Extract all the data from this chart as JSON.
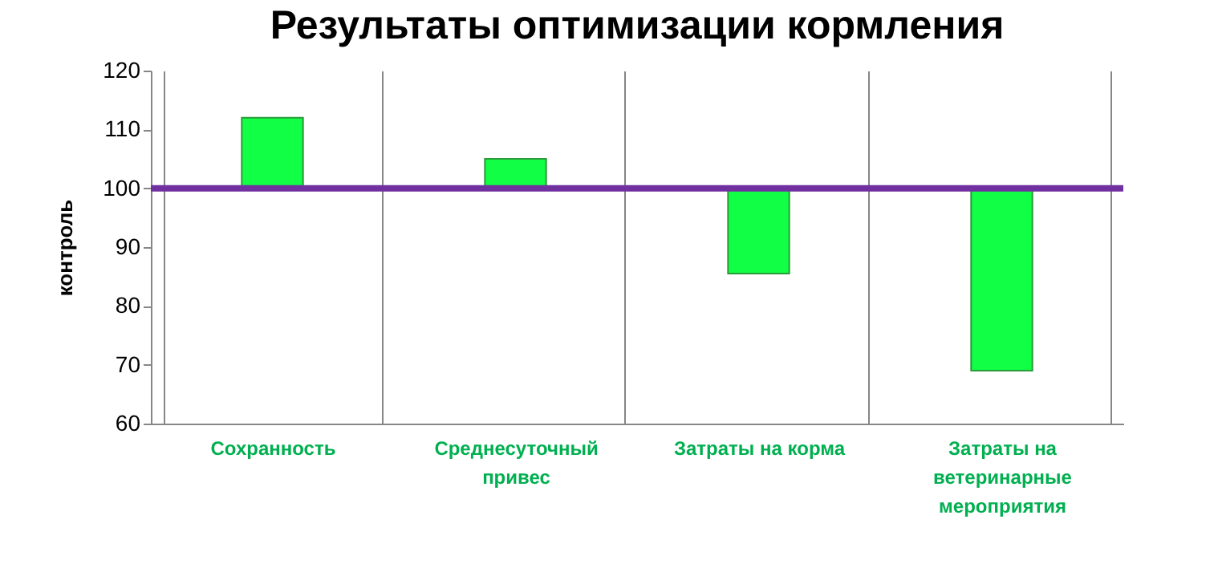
{
  "chart_data": {
    "type": "bar",
    "title": "Результаты оптимизации кормления",
    "ylabel": "контроль",
    "categories": [
      "Сохранность",
      "Среднесуточный привес",
      "Затраты на корма",
      "Затраты на ветеринарные мероприятия"
    ],
    "base": [
      100,
      100,
      100,
      100
    ],
    "values": [
      12,
      5,
      -14.5,
      -31
    ],
    "color": "#11ff44",
    "ylim": [
      60,
      120
    ],
    "yticks": [
      60,
      70,
      80,
      90,
      100,
      110,
      120
    ],
    "grid": "x",
    "ref_lines": [
      {
        "axis": "y",
        "value": 100,
        "color": "#7030a0"
      }
    ]
  }
}
